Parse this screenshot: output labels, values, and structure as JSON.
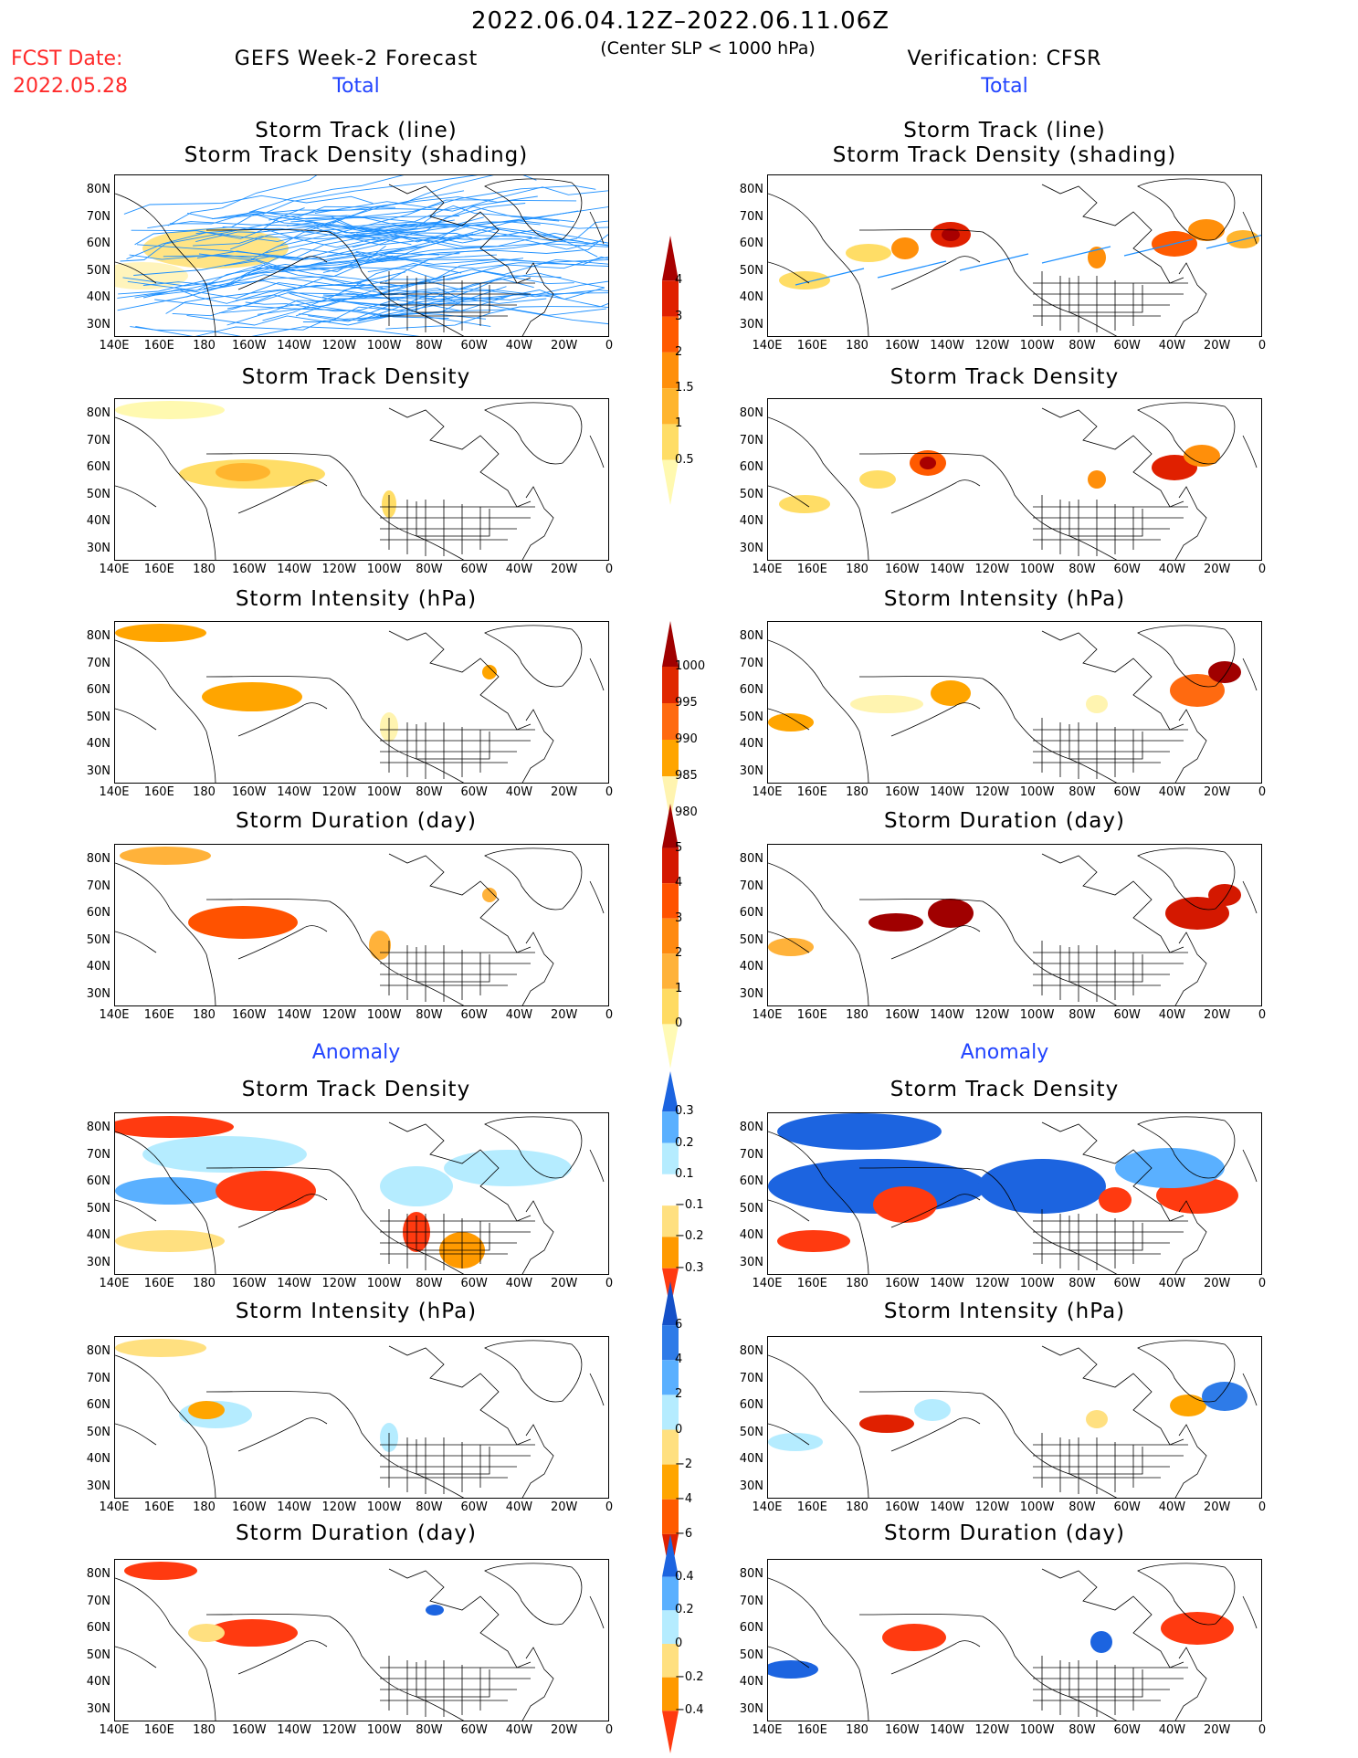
{
  "header": {
    "period": "2022.06.04.12Z–2022.06.11.06Z",
    "criterion": "(Center SLP < 1000 hPa)",
    "fcst_label": "FCST Date:",
    "fcst_date": "2022.05.28",
    "left_title": "GEFS Week-2 Forecast",
    "right_title": "Verification: CFSR"
  },
  "sections": {
    "total": "Total",
    "anomaly": "Anomaly"
  },
  "panel_titles": {
    "track_line": "Storm Track (line)",
    "track_shade": "Storm Track Density (shading)",
    "density": "Storm Track Density",
    "intensity": "Storm Intensity (hPa)",
    "duration": "Storm Duration (day)"
  },
  "axes": {
    "lat_labels": [
      "80N",
      "70N",
      "60N",
      "50N",
      "40N",
      "30N"
    ],
    "lon_labels": [
      "140E",
      "160E",
      "180",
      "160W",
      "140W",
      "120W",
      "100W",
      "80W",
      "60W",
      "40W",
      "20W",
      "0"
    ]
  },
  "colorbars": {
    "density_total": {
      "labels": [
        "0.5",
        "1",
        "1.5",
        "2",
        "3",
        "4"
      ],
      "colors": [
        "#fff9b0",
        "#ffdd66",
        "#ffb52e",
        "#ff8f0a",
        "#ff5a00",
        "#e02000",
        "#a80000"
      ]
    },
    "intensity_total": {
      "labels": [
        "1000",
        "995",
        "990",
        "985",
        "980"
      ],
      "colors": [
        "#fff4b0",
        "#ffa500",
        "#ff6a10",
        "#e02800",
        "#a00000"
      ]
    },
    "duration_total": {
      "labels": [
        "0",
        "1",
        "2",
        "3",
        "4",
        "5"
      ],
      "colors": [
        "#fffab5",
        "#ffdb63",
        "#ffb23a",
        "#ff8a10",
        "#ff5200",
        "#d41800",
        "#a00000"
      ]
    },
    "density_anom": {
      "labels": [
        "0.3",
        "0.2",
        "0.1",
        "−0.1",
        "−0.2",
        "−0.3"
      ],
      "colors": [
        "#ff3a10",
        "#ff9a00",
        "#ffe080",
        "#ffffff",
        "#b5ecff",
        "#5ab0ff",
        "#1c64e0"
      ]
    },
    "intensity_anom": {
      "labels": [
        "6",
        "4",
        "2",
        "0",
        "−2",
        "−4",
        "−6"
      ],
      "colors": [
        "#e02000",
        "#ff5a00",
        "#ffa500",
        "#ffe080",
        "#b5ecff",
        "#5ab0ff",
        "#2e7be8",
        "#1450c8"
      ]
    },
    "duration_anom": {
      "labels": [
        "0.4",
        "0.2",
        "0",
        "−0.2",
        "−0.4"
      ],
      "colors": [
        "#ff3a10",
        "#ff9a00",
        "#ffe080",
        "#b5ecff",
        "#5ab0ff",
        "#1c64e0"
      ]
    }
  },
  "map_colors": {
    "track_line": "#1e90ff",
    "coast": "#000000"
  }
}
